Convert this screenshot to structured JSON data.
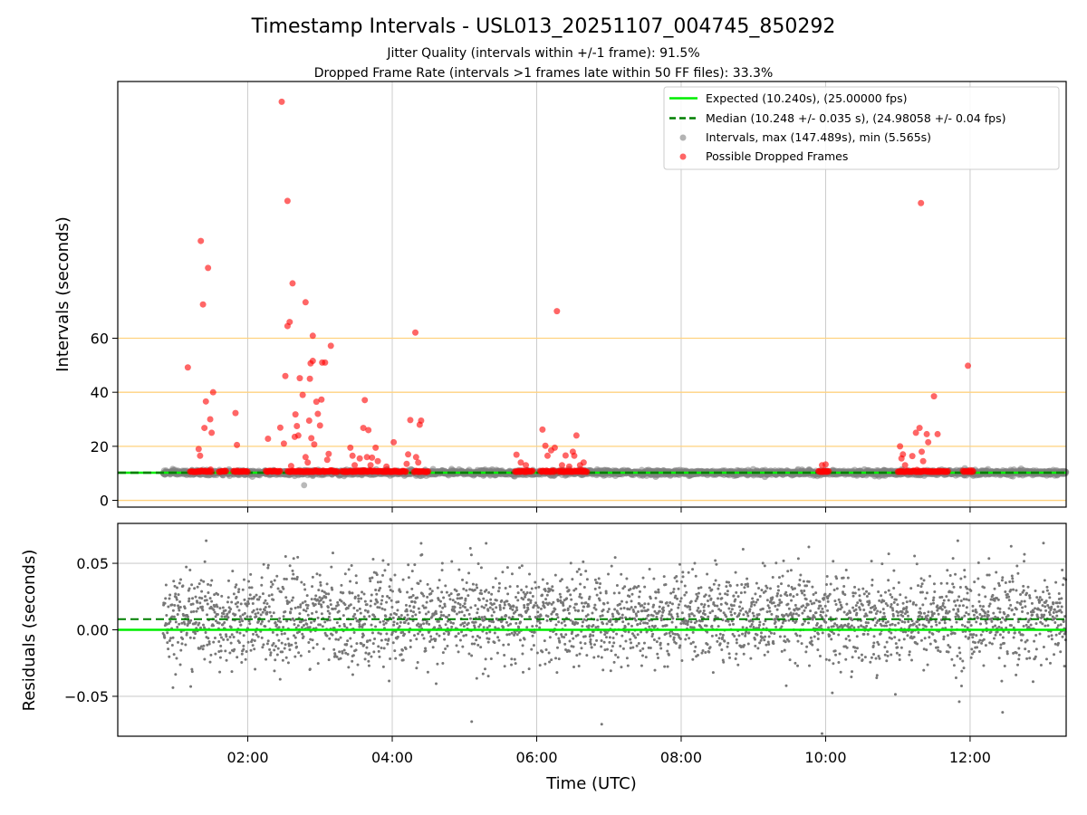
{
  "chart_data": [
    {
      "id": "intervals-panel",
      "type": "scatter",
      "title": "Timestamp Intervals - USL013_20251107_004745_850292",
      "subtitle_lines": [
        "Jitter Quality (intervals within +/-1 frame): 91.5%",
        "Dropped Frame Rate (intervals >1 frames late within 50 FF files): 33.3%"
      ],
      "xlabel": "",
      "ylabel": "Intervals (seconds)",
      "x_unit": "hours UTC",
      "xlim": [
        0.2,
        13.33
      ],
      "ylim": [
        -2.5,
        155
      ],
      "y_ticks": [
        0,
        20,
        40,
        60
      ],
      "y_tick_labels": [
        "0",
        "20",
        "40",
        "60"
      ],
      "horizontal_reference_lines": [
        0,
        20,
        40,
        60
      ],
      "reference_line_color": "#ffd27f",
      "grid": "vertical",
      "legend_position": "top-right",
      "expected_interval": 10.24,
      "median_interval": 10.248,
      "series": [
        {
          "name": "Expected (10.240s), (25.00000 fps)",
          "kind": "line",
          "color": "#00ee00",
          "y": 10.24
        },
        {
          "name": "Median (10.248 +/- 0.035 s), (24.98058 +/- 0.04 fps)",
          "kind": "dashed-line",
          "color": "#007f00",
          "y": 10.248
        },
        {
          "name": "Intervals, max (147.489s), min (5.565s)",
          "kind": "scatter",
          "color": "#808080",
          "opacity": 0.55,
          "baseline_segments": [
            [
              0.83,
              13.33
            ]
          ],
          "points": [
            [
              1.43,
              9.4
            ],
            [
              2.65,
              9.0
            ],
            [
              2.78,
              5.6
            ],
            [
              2.83,
              9.3
            ],
            [
              2.9,
              9.0
            ],
            [
              6.2,
              9.2
            ],
            [
              6.35,
              9.4
            ],
            [
              11.25,
              9.3
            ],
            [
              11.95,
              9.2
            ]
          ]
        },
        {
          "name": "Possible Dropped Frames",
          "kind": "scatter",
          "color": "#ff0000",
          "opacity": 0.6,
          "clusters": [
            [
              1.2,
              1.5
            ],
            [
              1.6,
              1.7
            ],
            [
              1.8,
              2.0
            ],
            [
              2.25,
              2.45
            ],
            [
              2.55,
              3.25
            ],
            [
              3.3,
              4.2
            ],
            [
              4.3,
              4.5
            ],
            [
              5.7,
              5.95
            ],
            [
              6.05,
              6.25
            ],
            [
              6.3,
              6.7
            ],
            [
              9.9,
              10.05
            ],
            [
              11.0,
              11.7
            ],
            [
              11.9,
              12.05
            ]
          ],
          "cluster_value": 10.5,
          "points": [
            [
              1.17,
              49.2
            ],
            [
              1.32,
              19.0
            ],
            [
              1.34,
              16.5
            ],
            [
              1.35,
              96.0
            ],
            [
              1.38,
              72.5
            ],
            [
              1.4,
              26.8
            ],
            [
              1.42,
              36.6
            ],
            [
              1.45,
              86.0
            ],
            [
              1.48,
              30.0
            ],
            [
              1.5,
              25.0
            ],
            [
              1.52,
              40.0
            ],
            [
              1.83,
              32.3
            ],
            [
              1.85,
              20.5
            ],
            [
              2.28,
              22.8
            ],
            [
              2.45,
              26.9
            ],
            [
              2.47,
              147.5
            ],
            [
              2.5,
              21.0
            ],
            [
              2.52,
              46.0
            ],
            [
              2.55,
              110.8
            ],
            [
              2.55,
              64.5
            ],
            [
              2.58,
              66.0
            ],
            [
              2.6,
              12.7
            ],
            [
              2.62,
              80.3
            ],
            [
              2.65,
              23.5
            ],
            [
              2.66,
              31.8
            ],
            [
              2.68,
              27.5
            ],
            [
              2.7,
              24.0
            ],
            [
              2.72,
              45.2
            ],
            [
              2.76,
              39.0
            ],
            [
              2.8,
              73.3
            ],
            [
              2.8,
              16.0
            ],
            [
              2.83,
              14.0
            ],
            [
              2.85,
              29.5
            ],
            [
              2.86,
              45.0
            ],
            [
              2.87,
              50.7
            ],
            [
              2.88,
              23.0
            ],
            [
              2.9,
              51.6
            ],
            [
              2.9,
              60.9
            ],
            [
              2.92,
              20.7
            ],
            [
              2.95,
              36.5
            ],
            [
              2.97,
              32.0
            ],
            [
              3.0,
              27.7
            ],
            [
              3.02,
              37.3
            ],
            [
              3.03,
              51.0
            ],
            [
              3.07,
              51.0
            ],
            [
              3.1,
              15.0
            ],
            [
              3.15,
              57.2
            ],
            [
              3.12,
              17.2
            ],
            [
              3.42,
              19.5
            ],
            [
              3.45,
              16.5
            ],
            [
              3.48,
              13.0
            ],
            [
              3.55,
              15.5
            ],
            [
              3.6,
              26.8
            ],
            [
              3.62,
              37.1
            ],
            [
              3.65,
              16.0
            ],
            [
              3.67,
              26.0
            ],
            [
              3.7,
              13.0
            ],
            [
              3.72,
              15.8
            ],
            [
              3.77,
              19.5
            ],
            [
              3.8,
              14.5
            ],
            [
              3.92,
              12.5
            ],
            [
              4.02,
              21.5
            ],
            [
              4.2,
              13.5
            ],
            [
              4.22,
              17.0
            ],
            [
              4.25,
              29.7
            ],
            [
              4.32,
              62.1
            ],
            [
              4.33,
              16.0
            ],
            [
              4.36,
              14.0
            ],
            [
              4.38,
              28.0
            ],
            [
              4.4,
              29.5
            ],
            [
              5.72,
              16.9
            ],
            [
              5.78,
              14.0
            ],
            [
              5.85,
              13.0
            ],
            [
              6.08,
              26.2
            ],
            [
              6.12,
              20.2
            ],
            [
              6.15,
              16.5
            ],
            [
              6.2,
              18.5
            ],
            [
              6.25,
              19.5
            ],
            [
              6.28,
              70.0
            ],
            [
              6.35,
              13.0
            ],
            [
              6.4,
              16.6
            ],
            [
              6.45,
              12.5
            ],
            [
              6.5,
              18.0
            ],
            [
              6.52,
              16.5
            ],
            [
              6.55,
              24.0
            ],
            [
              6.6,
              13.0
            ],
            [
              6.65,
              14.0
            ],
            [
              9.95,
              13.0
            ],
            [
              10.0,
              13.3
            ],
            [
              11.03,
              20.0
            ],
            [
              11.05,
              15.5
            ],
            [
              11.07,
              17.0
            ],
            [
              11.1,
              13.0
            ],
            [
              11.2,
              16.4
            ],
            [
              11.25,
              25.0
            ],
            [
              11.3,
              26.8
            ],
            [
              11.32,
              110.0
            ],
            [
              11.33,
              18.0
            ],
            [
              11.35,
              14.5
            ],
            [
              11.4,
              24.5
            ],
            [
              11.42,
              21.5
            ],
            [
              11.5,
              38.5
            ],
            [
              11.55,
              24.5
            ],
            [
              11.97,
              49.8
            ]
          ]
        }
      ]
    },
    {
      "id": "residuals-panel",
      "type": "scatter",
      "xlabel": "Time (UTC)",
      "ylabel": "Residuals (seconds)",
      "x_unit": "hours UTC",
      "xlim": [
        0.2,
        13.33
      ],
      "ylim": [
        -0.08,
        0.08
      ],
      "x_ticks": [
        2,
        4,
        6,
        8,
        10,
        12
      ],
      "x_tick_labels": [
        "02:00",
        "04:00",
        "06:00",
        "08:00",
        "10:00",
        "12:00"
      ],
      "y_ticks": [
        -0.05,
        0.0,
        0.05
      ],
      "y_tick_labels": [
        "−0.05",
        "0.00",
        "0.05"
      ],
      "grid": "both",
      "series": [
        {
          "kind": "line",
          "color": "#00ee00",
          "y": 0.0
        },
        {
          "kind": "dashed-line",
          "color": "#007f00",
          "y": 0.008
        },
        {
          "kind": "scatter",
          "color": "#777777",
          "x_range": [
            0.83,
            13.33
          ],
          "point_count": 3200,
          "spread_center": 0.009,
          "spread_sigma": 0.017,
          "min": -0.078,
          "max": 0.067,
          "notable_points": [
            [
              5.1,
              -0.069
            ],
            [
              6.9,
              -0.071
            ],
            [
              9.95,
              -0.078
            ],
            [
              11.85,
              -0.054
            ],
            [
              12.45,
              -0.062
            ],
            [
              11.83,
              0.067
            ],
            [
              4.4,
              0.065
            ],
            [
              5.3,
              0.065
            ]
          ]
        }
      ]
    }
  ]
}
